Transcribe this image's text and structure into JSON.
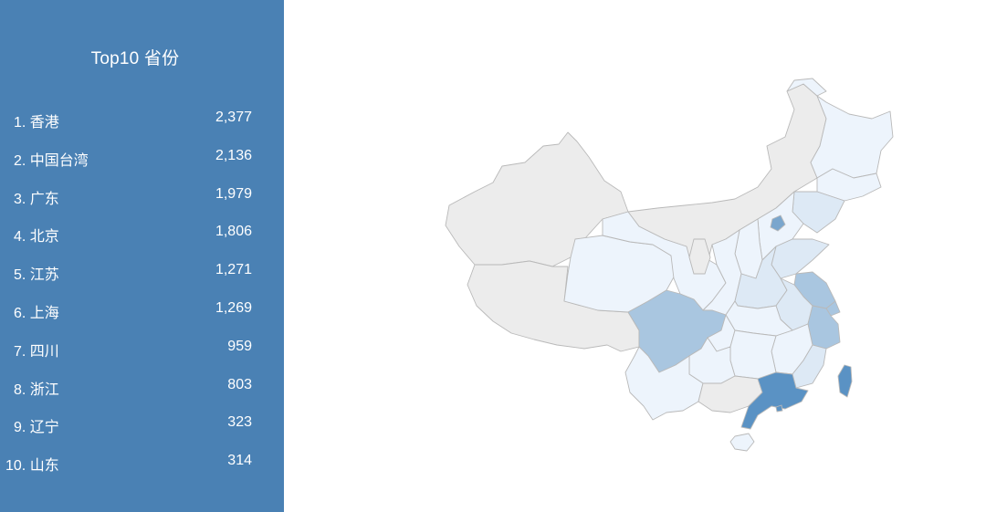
{
  "sidebar": {
    "title": "Top10 省份",
    "items": [
      {
        "label": "1. 香港",
        "value": "2,377"
      },
      {
        "label": "2. 中国台湾",
        "value": "2,136"
      },
      {
        "label": "3. 广东",
        "value": "1,979"
      },
      {
        "label": "4. 北京",
        "value": "1,806"
      },
      {
        "label": "5. 江苏",
        "value": "1,271"
      },
      {
        "label": "6. 上海",
        "value": "1,269"
      },
      {
        "label": "7. 四川",
        "value": "959"
      },
      {
        "label": "8. 浙江",
        "value": "803"
      },
      {
        "label": "9. 辽宁",
        "value": "323"
      },
      {
        "label": "10. 山东",
        "value": "314"
      }
    ]
  },
  "map": {
    "colors": {
      "none": "#ececec",
      "low": "#edf4fc",
      "light": "#dde9f5",
      "mid": "#a9c6e0",
      "high": "#7aa6cd",
      "top": "#5a92c4",
      "sidebar": "#4a81b4"
    }
  }
}
